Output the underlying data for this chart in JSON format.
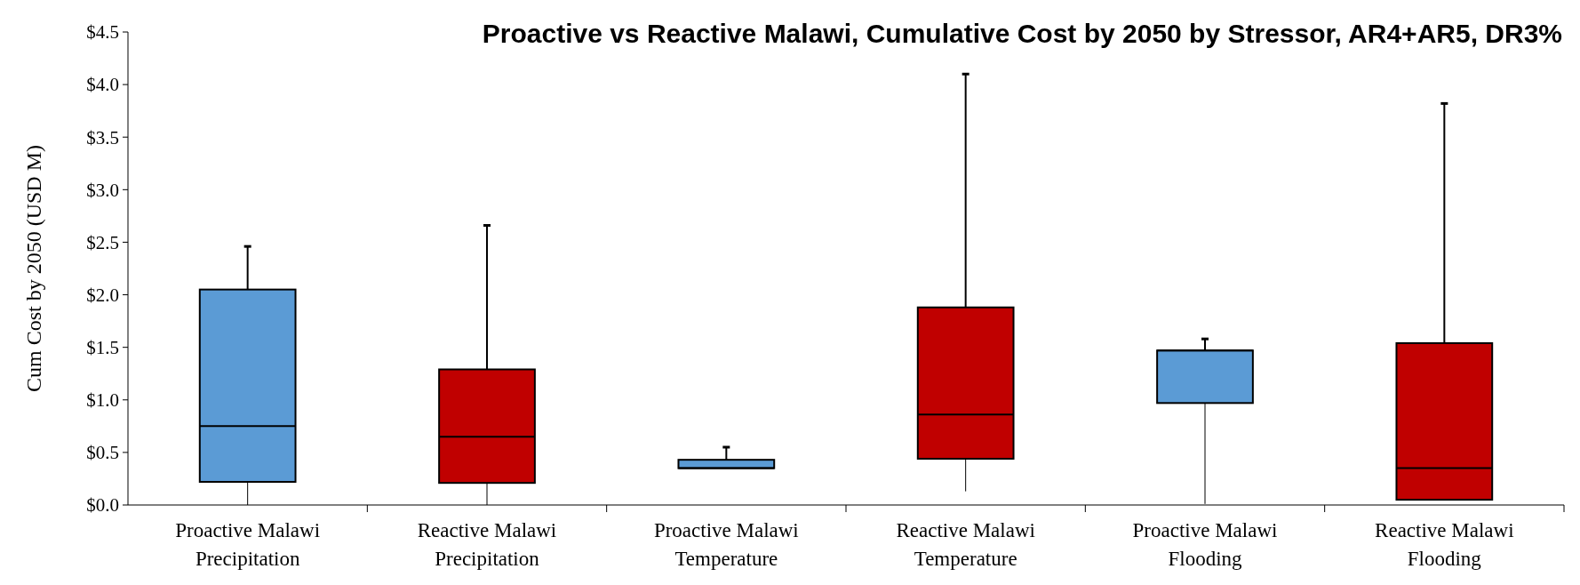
{
  "chart_data": {
    "type": "box",
    "title": "Proactive vs Reactive Malawi,  Cumulative Cost by 2050 by Stressor, AR4+AR5,  DR3%",
    "ylabel": "Cum Cost by 2050 (USD M)",
    "categories": [
      "Proactive Malawi Precipitation",
      "Reactive Malawi Precipitation",
      "Proactive Malawi Temperature",
      "Reactive Malawi Temperature",
      "Proactive Malawi Flooding",
      "Reactive Malawi Flooding"
    ],
    "colors": [
      "#5b9bd5",
      "#c00000",
      "#5b9bd5",
      "#c00000",
      "#5b9bd5",
      "#c00000"
    ],
    "boxes": [
      {
        "low": 0,
        "q1": 0.22,
        "median": 0.75,
        "q3": 2.05,
        "high": 2.46
      },
      {
        "low": 0,
        "q1": 0.21,
        "median": 0.65,
        "q3": 1.29,
        "high": 2.66
      },
      {
        "low": 0.35,
        "q1": 0.35,
        "median": 0.35,
        "q3": 0.43,
        "high": 0.55
      },
      {
        "low": 0.13,
        "q1": 0.44,
        "median": 0.86,
        "q3": 1.88,
        "high": 4.1
      },
      {
        "low": 0.01,
        "q1": 0.97,
        "median": 1.47,
        "q3": 1.47,
        "high": 1.58
      },
      {
        "low": 0.05,
        "q1": 0.05,
        "median": 0.35,
        "q3": 1.54,
        "high": 3.82
      }
    ],
    "ylim": [
      0,
      4.5
    ],
    "yticks": [
      {
        "value": 0,
        "label": "$0.0"
      },
      {
        "value": 0.5,
        "label": "$0.5"
      },
      {
        "value": 1,
        "label": "$1.0"
      },
      {
        "value": 1.5,
        "label": "$1.5"
      },
      {
        "value": 2,
        "label": "$2.0"
      },
      {
        "value": 2.5,
        "label": "$2.5"
      },
      {
        "value": 3,
        "label": "$3.0"
      },
      {
        "value": 3.5,
        "label": "$3.5"
      },
      {
        "value": 4,
        "label": "$4.0"
      },
      {
        "value": 4.5,
        "label": "$4.5"
      }
    ],
    "grid": false
  }
}
